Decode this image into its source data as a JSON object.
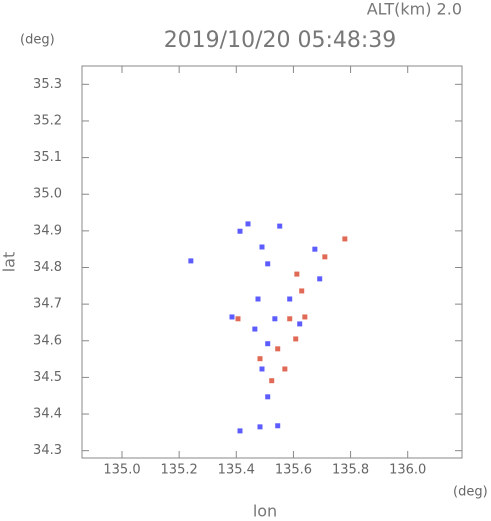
{
  "chart_data": {
    "type": "scatter",
    "subtitle": "ALT(km) 2.0",
    "title": "2019/10/20 05:48:39",
    "y_unit": "(deg)",
    "x_unit": "(deg)",
    "y_label": "lat",
    "x_label": "lon",
    "xlim": [
      134.86,
      136.19
    ],
    "ylim": [
      34.28,
      35.35
    ],
    "xticks": [
      {
        "value": 135,
        "label": "135.0"
      },
      135.2,
      135.4,
      135.6,
      135.8,
      {
        "value": 136,
        "label": "136.0"
      }
    ],
    "yticks": [
      34.3,
      34.4,
      34.5,
      34.6,
      34.7,
      34.8,
      34.9,
      {
        "value": 35,
        "label": "35.0"
      },
      35.1,
      35.2,
      35.3
    ],
    "series": [
      {
        "color": "#5c5cff",
        "x": [
          135.241,
          135.413,
          135.441,
          135.552,
          135.49,
          135.51,
          135.675,
          135.692,
          135.476,
          135.587,
          135.622,
          135.465,
          135.51,
          135.49,
          135.51,
          135.413,
          135.483,
          135.545,
          135.385,
          135.535
        ],
        "values": [
          34.818,
          34.899,
          34.919,
          34.913,
          34.856,
          34.81,
          34.85,
          34.769,
          34.714,
          34.714,
          34.646,
          34.632,
          34.592,
          34.523,
          34.447,
          34.354,
          34.365,
          34.368,
          34.665,
          34.66
        ]
      },
      {
        "color": "#e06a55",
        "x": [
          135.612,
          135.71,
          135.78,
          135.629,
          135.64,
          135.587,
          135.545,
          135.57,
          135.524,
          135.483,
          135.406,
          135.608
        ],
        "values": [
          34.782,
          34.829,
          34.878,
          34.736,
          34.665,
          34.66,
          34.578,
          34.523,
          34.491,
          34.551,
          34.66,
          34.605
        ]
      }
    ]
  }
}
